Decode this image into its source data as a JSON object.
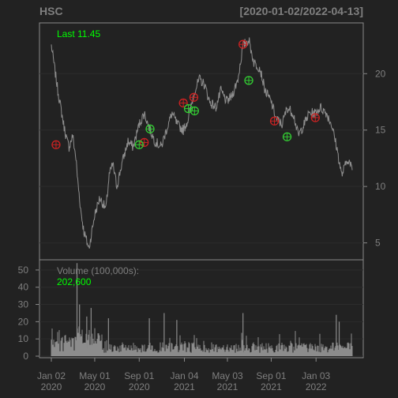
{
  "header": {
    "ticker": "HSC",
    "date_range": "[2020-01-02/2022-04-13]"
  },
  "last_label": "Last 11.45",
  "volume_label": "Volume (100,000s):",
  "volume_value": "202,600",
  "colors": {
    "background": "#222222",
    "panel_border": "#8a8a8a",
    "price_line": "#8f8f8f",
    "volume_bar": "#8c8c8c",
    "highlight": "#00ff00",
    "buy_marker": "#33cc33",
    "sell_marker": "#cc2222",
    "tick_text": "#7f7f7f"
  },
  "chart_data": [
    {
      "type": "line",
      "name": "price",
      "ylim": [
        3.5,
        24.5
      ],
      "yticks": [
        5,
        10,
        15,
        20
      ],
      "yticklabels": [
        "5",
        "10",
        "15",
        "20"
      ],
      "last": 11.45,
      "series": [
        {
          "x": [
            "2020-01-02",
            "2020-01-20",
            "2020-02-05",
            "2020-02-15",
            "2020-02-20",
            "2020-03-01",
            "2020-03-10",
            "2020-03-15",
            "2020-03-20",
            "2020-03-23",
            "2020-04-01",
            "2020-04-15",
            "2020-05-01",
            "2020-05-15",
            "2020-06-01",
            "2020-06-10",
            "2020-06-20",
            "2020-07-01",
            "2020-07-15",
            "2020-08-01",
            "2020-08-15",
            "2020-09-01",
            "2020-09-15",
            "2020-10-01",
            "2020-10-15",
            "2020-11-01",
            "2020-11-15",
            "2020-12-01",
            "2020-12-15",
            "2021-01-01",
            "2021-01-15",
            "2021-02-01",
            "2021-02-15",
            "2021-03-01",
            "2021-03-15",
            "2021-04-01",
            "2021-04-15",
            "2021-05-01",
            "2021-05-15",
            "2021-06-01",
            "2021-06-15",
            "2021-07-01",
            "2021-07-15",
            "2021-08-01",
            "2021-08-15",
            "2021-09-01",
            "2021-09-15",
            "2021-10-01",
            "2021-10-15",
            "2021-11-01",
            "2021-11-15",
            "2021-12-01",
            "2021-12-15",
            "2022-01-01",
            "2022-01-15",
            "2022-02-01",
            "2022-02-15",
            "2022-03-01",
            "2022-03-15",
            "2022-04-01",
            "2022-04-13"
          ],
          "y": [
            22.5,
            18.5,
            15.5,
            14.0,
            13.5,
            14.5,
            12.5,
            10.5,
            9.0,
            8.0,
            6.0,
            4.5,
            7.5,
            9.0,
            8.0,
            11.0,
            12.0,
            10.0,
            12.0,
            14.0,
            13.5,
            15.5,
            16.5,
            15.0,
            14.0,
            13.5,
            15.0,
            16.5,
            15.5,
            15.0,
            16.0,
            18.5,
            19.5,
            19.0,
            17.5,
            17.0,
            18.5,
            17.5,
            18.0,
            19.5,
            22.5,
            23.0,
            21.0,
            20.5,
            18.5,
            17.5,
            16.0,
            15.5,
            17.0,
            16.5,
            14.5,
            15.5,
            16.5,
            16.5,
            17.0,
            16.5,
            15.5,
            13.5,
            11.0,
            12.5,
            11.45
          ]
        }
      ],
      "markers": {
        "sell": [
          [
            "2020-01-15",
            13.7
          ],
          [
            "2020-09-15",
            13.9
          ],
          [
            "2021-01-01",
            17.4
          ],
          [
            "2021-01-30",
            17.9
          ],
          [
            "2021-06-15",
            22.6
          ],
          [
            "2021-09-10",
            15.8
          ],
          [
            "2022-01-01",
            16.1
          ]
        ],
        "buy": [
          [
            "2020-09-01",
            13.7
          ],
          [
            "2020-10-01",
            15.1
          ],
          [
            "2021-01-15",
            16.9
          ],
          [
            "2021-02-01",
            16.7
          ],
          [
            "2021-07-01",
            19.4
          ],
          [
            "2021-10-15",
            14.4
          ]
        ]
      }
    },
    {
      "type": "bar",
      "name": "volume",
      "ylim": [
        0,
        55
      ],
      "yticks": [
        0,
        10,
        20,
        30,
        40,
        50
      ],
      "yticklabels": [
        "0",
        "10",
        "20",
        "30",
        "40",
        "50"
      ],
      "xticklabels": [
        {
          "date": "2020-01-02",
          "top": "Jan 02",
          "bottom": "2020"
        },
        {
          "date": "2020-05-01",
          "top": "May 01",
          "bottom": "2020"
        },
        {
          "date": "2020-09-01",
          "top": "Sep 01",
          "bottom": "2020"
        },
        {
          "date": "2021-01-04",
          "top": "Jan 04",
          "bottom": "2021"
        },
        {
          "date": "2021-05-03",
          "top": "May 03",
          "bottom": "2021"
        },
        {
          "date": "2021-09-01",
          "top": "Sep 01",
          "bottom": "2021"
        },
        {
          "date": "2022-01-03",
          "top": "Jan 03",
          "bottom": "2022"
        }
      ],
      "spikes": [
        [
          "2020-03-13",
          54
        ],
        [
          "2020-03-20",
          30
        ],
        [
          "2020-04-09",
          23
        ],
        [
          "2020-04-21",
          28
        ],
        [
          "2020-06-08",
          22
        ],
        [
          "2020-09-29",
          22
        ],
        [
          "2020-11-09",
          25
        ],
        [
          "2020-12-14",
          21
        ],
        [
          "2021-06-15",
          25
        ],
        [
          "2022-02-28",
          24
        ],
        [
          "2022-03-08",
          20
        ]
      ]
    }
  ]
}
